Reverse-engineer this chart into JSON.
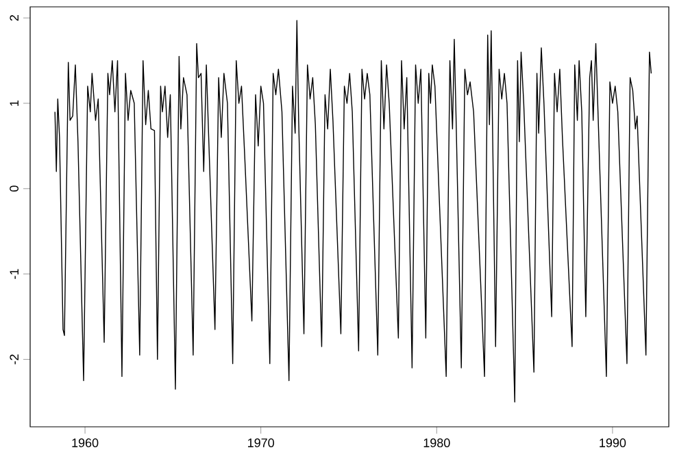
{
  "chart_data": {
    "type": "line",
    "color": "#000000",
    "marker": "none",
    "line_style": "solid",
    "xlim": [
      1956.88,
      1993.2
    ],
    "ylim": [
      -2.79,
      2.13
    ],
    "xticks": [
      1960,
      1970,
      1980,
      1990
    ],
    "yticks": [
      -2,
      -1,
      0,
      1,
      2
    ],
    "x": [
      1958.29,
      1958.37,
      1958.45,
      1958.55,
      1958.75,
      1958.83,
      1959.05,
      1959.15,
      1959.3,
      1959.45,
      1959.6,
      1959.92,
      1960.15,
      1960.3,
      1960.4,
      1960.6,
      1960.75,
      1961.09,
      1961.3,
      1961.4,
      1961.55,
      1961.7,
      1961.85,
      1962.1,
      1962.3,
      1962.45,
      1962.6,
      1962.8,
      1963.11,
      1963.3,
      1963.45,
      1963.6,
      1963.75,
      1963.95,
      1964.12,
      1964.3,
      1964.4,
      1964.55,
      1964.7,
      1964.85,
      1965.14,
      1965.35,
      1965.45,
      1965.6,
      1965.8,
      1966.15,
      1966.35,
      1966.45,
      1966.6,
      1966.75,
      1966.9,
      1967.39,
      1967.6,
      1967.75,
      1967.9,
      1968.1,
      1968.4,
      1968.6,
      1968.75,
      1968.9,
      1969.1,
      1969.49,
      1969.7,
      1969.85,
      1970.0,
      1970.15,
      1970.51,
      1970.7,
      1970.85,
      1971.0,
      1971.2,
      1971.6,
      1971.8,
      1971.95,
      1972.05,
      1972.15,
      1972.45,
      1972.65,
      1972.8,
      1972.95,
      1973.1,
      1973.46,
      1973.65,
      1973.8,
      1973.95,
      1974.1,
      1974.55,
      1974.75,
      1974.9,
      1975.05,
      1975.2,
      1975.56,
      1975.75,
      1975.9,
      1976.05,
      1976.2,
      1976.65,
      1976.85,
      1977.0,
      1977.15,
      1977.3,
      1977.82,
      1978.0,
      1978.15,
      1978.3,
      1978.6,
      1978.8,
      1978.95,
      1979.1,
      1979.38,
      1979.55,
      1979.65,
      1979.75,
      1979.9,
      1980.54,
      1980.75,
      1980.9,
      1981.0,
      1981.1,
      1981.4,
      1981.6,
      1981.75,
      1981.9,
      1982.1,
      1982.72,
      1982.9,
      1983.0,
      1983.1,
      1983.35,
      1983.55,
      1983.7,
      1983.85,
      1984.0,
      1984.44,
      1984.6,
      1984.7,
      1984.8,
      1984.95,
      1985.53,
      1985.7,
      1985.8,
      1985.95,
      1986.1,
      1986.54,
      1986.7,
      1986.85,
      1987.0,
      1987.15,
      1987.7,
      1987.85,
      1988.0,
      1988.1,
      1988.25,
      1988.48,
      1988.7,
      1988.8,
      1988.9,
      1989.05,
      1989.65,
      1989.85,
      1990.0,
      1990.15,
      1990.3,
      1990.82,
      1991.0,
      1991.15,
      1991.3,
      1991.4,
      1991.9,
      1992.1,
      1992.2
    ],
    "values": [
      0.9,
      0.2,
      1.05,
      0.6,
      -1.65,
      -1.72,
      1.48,
      0.8,
      0.85,
      1.45,
      0.55,
      -2.25,
      1.2,
      0.9,
      1.35,
      0.8,
      1.05,
      -1.8,
      1.35,
      1.1,
      1.5,
      0.9,
      1.5,
      -2.2,
      1.35,
      0.8,
      1.15,
      1.0,
      -1.95,
      1.5,
      0.75,
      1.15,
      0.7,
      0.68,
      -2.0,
      1.2,
      0.9,
      1.2,
      0.6,
      1.1,
      -2.35,
      1.55,
      0.7,
      1.3,
      1.1,
      -1.95,
      1.7,
      1.3,
      1.35,
      0.2,
      1.45,
      -1.65,
      1.3,
      0.6,
      1.35,
      1.0,
      -2.05,
      1.5,
      1.0,
      1.2,
      0.3,
      -1.55,
      1.1,
      0.5,
      1.2,
      1.0,
      -2.05,
      1.35,
      1.1,
      1.4,
      0.9,
      -2.25,
      1.2,
      0.65,
      1.97,
      0.8,
      -1.7,
      1.45,
      1.05,
      1.3,
      0.75,
      -1.85,
      1.1,
      0.7,
      1.4,
      0.8,
      -1.7,
      1.2,
      1.0,
      1.35,
      0.9,
      -1.9,
      1.4,
      1.05,
      1.35,
      1.1,
      -1.95,
      1.5,
      0.7,
      1.45,
      1.0,
      -1.75,
      1.5,
      0.7,
      1.3,
      -2.1,
      1.45,
      1.0,
      1.4,
      -1.75,
      1.35,
      1.0,
      1.45,
      1.2,
      -2.2,
      1.5,
      0.7,
      1.75,
      0.85,
      -2.1,
      1.4,
      1.1,
      1.25,
      0.9,
      -2.2,
      1.8,
      0.75,
      1.85,
      -1.85,
      1.4,
      1.05,
      1.35,
      1.0,
      -2.5,
      1.5,
      0.55,
      1.6,
      1.0,
      -2.15,
      1.35,
      0.65,
      1.65,
      1.0,
      -1.5,
      1.35,
      0.9,
      1.4,
      0.6,
      -1.85,
      1.45,
      0.8,
      1.5,
      0.9,
      -1.5,
      1.3,
      1.5,
      0.8,
      1.7,
      -2.2,
      1.25,
      1.0,
      1.2,
      0.9,
      -2.05,
      1.3,
      1.15,
      0.7,
      0.85,
      -1.95,
      1.6,
      1.35
    ]
  }
}
